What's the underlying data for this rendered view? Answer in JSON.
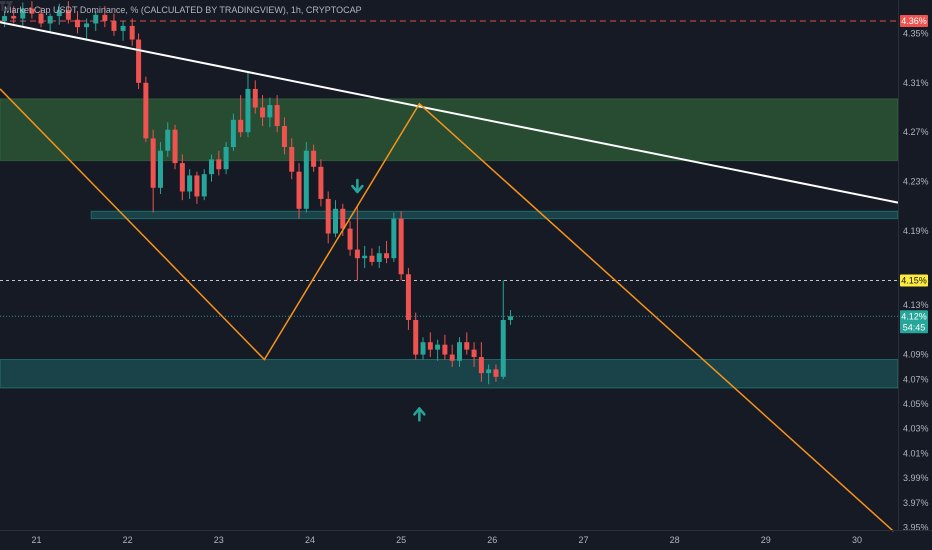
{
  "title": "Market Cap USDT Dominance, % (CALCULATED BY TRADINGVIEW), 1h, CRYPTOCAP",
  "colors": {
    "background": "#161a25",
    "up": "#26a69a",
    "down": "#ef5350",
    "zigzag": "#f7931a",
    "trendline": "#ffffff",
    "resistance_zone": "#2e5d37",
    "support_zone": "#1b4a50",
    "red_level": "#ef5350",
    "yellow_badge": "#ffeb3b",
    "arrow": "#26a69a"
  },
  "chart_data": {
    "type": "candlestick",
    "title": "Market Cap USDT Dominance, % (CALCULATED BY TRADINGVIEW), 1h, CRYPTOCAP",
    "x_ticks": [
      "21",
      "22",
      "23",
      "24",
      "25",
      "26",
      "27",
      "28",
      "29",
      "30"
    ],
    "y_ticks": [
      "4.35%",
      "4.31%",
      "4.27%",
      "4.23%",
      "4.19%",
      "4.15%",
      "4.13%",
      "4.09%",
      "4.07%",
      "4.05%",
      "4.03%",
      "4.01%",
      "3.99%",
      "3.97%",
      "3.95%"
    ],
    "ylim": [
      3.948,
      4.377
    ],
    "xlim": [
      20.6,
      30.45
    ],
    "price_badges": [
      {
        "label": "4.36%",
        "kind": "red"
      },
      {
        "label": "4.15%",
        "kind": "yellow"
      },
      {
        "label": "4.12%",
        "sub": "54:45",
        "kind": "green"
      }
    ],
    "levels": [
      {
        "name": "red dashed level",
        "value": 4.36
      },
      {
        "name": "yellow dashed level",
        "value": 4.15
      },
      {
        "name": "current price",
        "value": 4.121
      }
    ],
    "zones": [
      {
        "name": "resistance",
        "from": 4.247,
        "to": 4.297
      },
      {
        "name": "support",
        "from": 4.063,
        "to": 4.086
      },
      {
        "name": "thin band",
        "from": 4.2,
        "to": 4.206
      }
    ],
    "trendline": [
      [
        20.6,
        4.359
      ],
      [
        30.45,
        4.213
      ]
    ],
    "zigzag": [
      [
        20.6,
        4.305
      ],
      [
        23.5,
        4.086
      ],
      [
        25.2,
        4.293
      ],
      [
        30.4,
        3.947
      ]
    ],
    "arrows": [
      {
        "direction": "down",
        "x": 24.52,
        "y": 4.224
      },
      {
        "direction": "up",
        "x": 25.2,
        "y": 4.044
      }
    ],
    "candles": [
      [
        20.65,
        4.36,
        4.368,
        4.355,
        4.364
      ],
      [
        20.75,
        4.364,
        4.372,
        4.358,
        4.362
      ],
      [
        20.85,
        4.362,
        4.375,
        4.356,
        4.37
      ],
      [
        20.95,
        4.37,
        4.376,
        4.362,
        4.366
      ],
      [
        21.05,
        4.366,
        4.371,
        4.355,
        4.358
      ],
      [
        21.15,
        4.358,
        4.366,
        4.35,
        4.364
      ],
      [
        21.25,
        4.364,
        4.374,
        4.357,
        4.369
      ],
      [
        21.35,
        4.369,
        4.376,
        4.358,
        4.361
      ],
      [
        21.45,
        4.361,
        4.368,
        4.35,
        4.355
      ],
      [
        21.55,
        4.355,
        4.362,
        4.345,
        4.358
      ],
      [
        21.65,
        4.358,
        4.368,
        4.352,
        4.365
      ],
      [
        21.75,
        4.365,
        4.372,
        4.355,
        4.36
      ],
      [
        21.85,
        4.36,
        4.366,
        4.348,
        4.352
      ],
      [
        21.95,
        4.352,
        4.36,
        4.344,
        4.356
      ],
      [
        22.05,
        4.356,
        4.362,
        4.34,
        4.345
      ],
      [
        22.12,
        4.345,
        4.35,
        4.305,
        4.31
      ],
      [
        22.2,
        4.31,
        4.315,
        4.262,
        4.265
      ],
      [
        22.28,
        4.265,
        4.272,
        4.205,
        4.225
      ],
      [
        22.36,
        4.225,
        4.262,
        4.22,
        4.255
      ],
      [
        22.44,
        4.255,
        4.278,
        4.25,
        4.272
      ],
      [
        22.52,
        4.272,
        4.276,
        4.24,
        4.245
      ],
      [
        22.6,
        4.245,
        4.252,
        4.215,
        4.222
      ],
      [
        22.68,
        4.222,
        4.24,
        4.216,
        4.235
      ],
      [
        22.76,
        4.235,
        4.238,
        4.212,
        4.218
      ],
      [
        22.84,
        4.218,
        4.24,
        4.215,
        4.236
      ],
      [
        22.92,
        4.236,
        4.252,
        4.23,
        4.248
      ],
      [
        23.0,
        4.248,
        4.255,
        4.235,
        4.24
      ],
      [
        23.08,
        4.24,
        4.262,
        4.236,
        4.258
      ],
      [
        23.16,
        4.258,
        4.285,
        4.255,
        4.28
      ],
      [
        23.24,
        4.28,
        4.3,
        4.266,
        4.27
      ],
      [
        23.32,
        4.27,
        4.318,
        4.266,
        4.305
      ],
      [
        23.4,
        4.305,
        4.312,
        4.285,
        4.29
      ],
      [
        23.48,
        4.29,
        4.3,
        4.275,
        4.282
      ],
      [
        23.56,
        4.282,
        4.298,
        4.274,
        4.292
      ],
      [
        23.64,
        4.292,
        4.3,
        4.27,
        4.275
      ],
      [
        23.72,
        4.275,
        4.282,
        4.252,
        4.258
      ],
      [
        23.8,
        4.258,
        4.265,
        4.232,
        4.238
      ],
      [
        23.88,
        4.238,
        4.245,
        4.2,
        4.208
      ],
      [
        23.96,
        4.208,
        4.262,
        4.205,
        4.255
      ],
      [
        24.04,
        4.255,
        4.26,
        4.238,
        4.242
      ],
      [
        24.12,
        4.242,
        4.248,
        4.21,
        4.216
      ],
      [
        24.2,
        4.216,
        4.222,
        4.18,
        4.188
      ],
      [
        24.28,
        4.188,
        4.215,
        4.185,
        4.208
      ],
      [
        24.36,
        4.208,
        4.212,
        4.186,
        4.192
      ],
      [
        24.44,
        4.192,
        4.198,
        4.17,
        4.175
      ],
      [
        24.52,
        4.175,
        4.21,
        4.15,
        4.168
      ],
      [
        24.6,
        4.168,
        4.178,
        4.16,
        4.17
      ],
      [
        24.68,
        4.17,
        4.176,
        4.162,
        4.165
      ],
      [
        24.76,
        4.165,
        4.178,
        4.16,
        4.172
      ],
      [
        24.84,
        4.172,
        4.182,
        4.164,
        4.168
      ],
      [
        24.92,
        4.168,
        4.205,
        4.165,
        4.2
      ],
      [
        25.0,
        4.2,
        4.206,
        4.15,
        4.155
      ],
      [
        25.08,
        4.155,
        4.16,
        4.11,
        4.118
      ],
      [
        25.16,
        4.118,
        4.124,
        4.086,
        4.09
      ],
      [
        25.24,
        4.09,
        4.104,
        4.086,
        4.1
      ],
      [
        25.32,
        4.1,
        4.108,
        4.088,
        4.094
      ],
      [
        25.4,
        4.094,
        4.102,
        4.085,
        4.098
      ],
      [
        25.48,
        4.098,
        4.106,
        4.086,
        4.09
      ],
      [
        25.56,
        4.09,
        4.098,
        4.08,
        4.085
      ],
      [
        25.64,
        4.085,
        4.104,
        4.08,
        4.1
      ],
      [
        25.72,
        4.1,
        4.108,
        4.09,
        4.094
      ],
      [
        25.8,
        4.094,
        4.1,
        4.08,
        4.088
      ],
      [
        25.88,
        4.088,
        4.1,
        4.068,
        4.075
      ],
      [
        25.96,
        4.075,
        4.082,
        4.066,
        4.078
      ],
      [
        26.04,
        4.078,
        4.082,
        4.068,
        4.072
      ],
      [
        26.12,
        4.072,
        4.15,
        4.07,
        4.118
      ],
      [
        26.2,
        4.118,
        4.126,
        4.114,
        4.121
      ]
    ]
  },
  "logo": {
    "icon": "tradingview-logo-icon"
  }
}
